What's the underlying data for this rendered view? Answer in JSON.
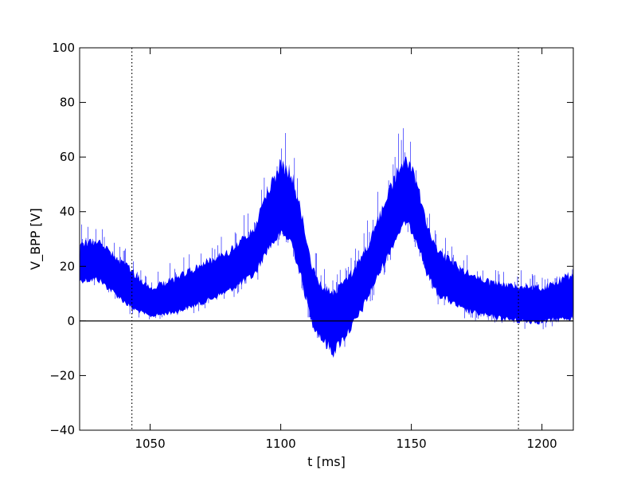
{
  "chart_data": {
    "type": "line",
    "title": "",
    "xlabel": "t [ms]",
    "ylabel": "V_BPP [V]",
    "xlim": [
      1023,
      1212
    ],
    "ylim": [
      -40,
      100
    ],
    "xticks": [
      1050,
      1100,
      1150,
      1200
    ],
    "yticks": [
      -40,
      -20,
      0,
      20,
      40,
      60,
      80,
      100
    ],
    "x_tick_labels": [
      "1050",
      "1100",
      "1150",
      "1200"
    ],
    "y_tick_labels": [
      "−40",
      "−20",
      "0",
      "20",
      "40",
      "60",
      "80",
      "100"
    ],
    "grid": false,
    "legend": "none",
    "reference_lines": {
      "horizontal_solid_y": 0,
      "vertical_dotted_x": [
        1043,
        1191
      ]
    },
    "series": [
      {
        "color": "#0000ff",
        "style": "noisy-trace",
        "envelope_x": [
          1023,
          1030,
          1043,
          1050,
          1060,
          1070,
          1080,
          1090,
          1095,
          1100,
          1104,
          1108,
          1112,
          1116,
          1120,
          1125,
          1130,
          1135,
          1140,
          1145,
          1148,
          1152,
          1156,
          1160,
          1170,
          1180,
          1191,
          1200,
          1212
        ],
        "envelope_center": [
          20,
          22,
          10,
          5,
          8,
          12,
          17,
          25,
          35,
          40,
          38,
          25,
          8,
          3,
          2,
          5,
          12,
          20,
          30,
          40,
          45,
          38,
          25,
          18,
          10,
          7,
          6,
          5,
          8
        ],
        "envelope_low": [
          12,
          12,
          2,
          0,
          1,
          4,
          8,
          13,
          22,
          28,
          25,
          10,
          -5,
          -12,
          -18,
          -10,
          -3,
          8,
          18,
          28,
          32,
          26,
          13,
          6,
          1,
          -1,
          -3,
          -3,
          -2
        ],
        "envelope_high": [
          35,
          35,
          25,
          18,
          22,
          28,
          32,
          42,
          58,
          72,
          68,
          50,
          30,
          20,
          18,
          22,
          30,
          40,
          55,
          68,
          72,
          62,
          42,
          32,
          25,
          20,
          18,
          18,
          25
        ]
      }
    ]
  }
}
